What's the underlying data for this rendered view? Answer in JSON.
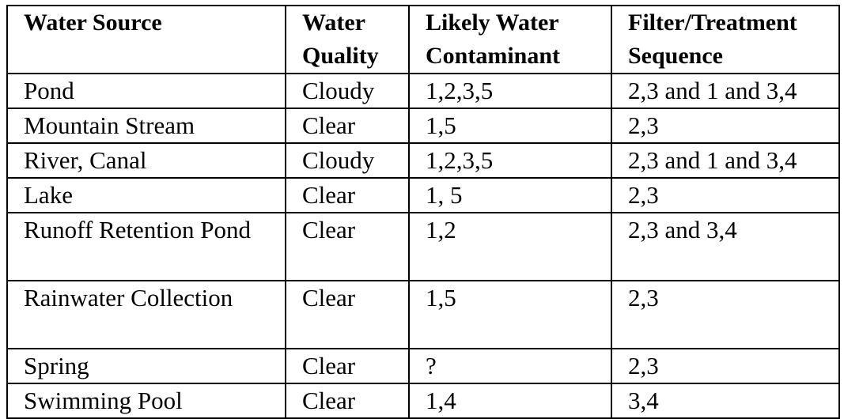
{
  "table": {
    "headers": [
      "Water Source",
      "Water Quality",
      "Likely Water Contaminant",
      "Filter/Treatment Sequence"
    ],
    "rows": [
      [
        "Pond",
        "Cloudy",
        "1,2,3,5",
        "2,3 and 1 and 3,4"
      ],
      [
        "Mountain Stream",
        "Clear",
        "1,5",
        "2,3"
      ],
      [
        "River, Canal",
        "Cloudy",
        "1,2,3,5",
        "2,3 and 1 and 3,4"
      ],
      [
        "Lake",
        "Clear",
        "1, 5",
        "2,3"
      ],
      [
        "Runoff Retention Pond",
        "Clear",
        "1,2",
        "2,3 and 3,4"
      ],
      [
        "Rainwater Collection",
        "Clear",
        "1,5",
        "2,3"
      ],
      [
        "Spring",
        "Clear",
        "?",
        "2,3"
      ],
      [
        "Swimming Pool",
        "Clear",
        "1,4",
        "3,4"
      ]
    ]
  }
}
